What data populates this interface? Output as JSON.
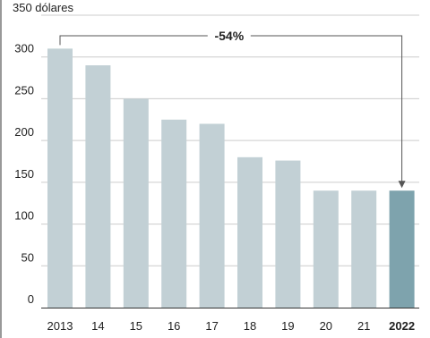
{
  "chart_data": {
    "type": "bar",
    "categories": [
      "2013",
      "14",
      "15",
      "16",
      "17",
      "18",
      "19",
      "20",
      "21",
      "2022"
    ],
    "values": [
      310,
      290,
      250,
      225,
      220,
      180,
      176,
      140,
      140,
      140
    ],
    "highlight_index": 9,
    "ylabel": "",
    "y_unit_label": "350 dólares",
    "ylim": [
      0,
      350
    ],
    "yticks": [
      0,
      50,
      100,
      150,
      200,
      250,
      300
    ],
    "grid": true,
    "annotation": {
      "text": "-54%",
      "from_index": 0,
      "to_index": 9
    },
    "colors": {
      "bar": "#c2d0d5",
      "highlight": "#7ea3ad",
      "grid": "#cccccc",
      "axis": "#333333",
      "annotation_line": "#555555"
    }
  }
}
